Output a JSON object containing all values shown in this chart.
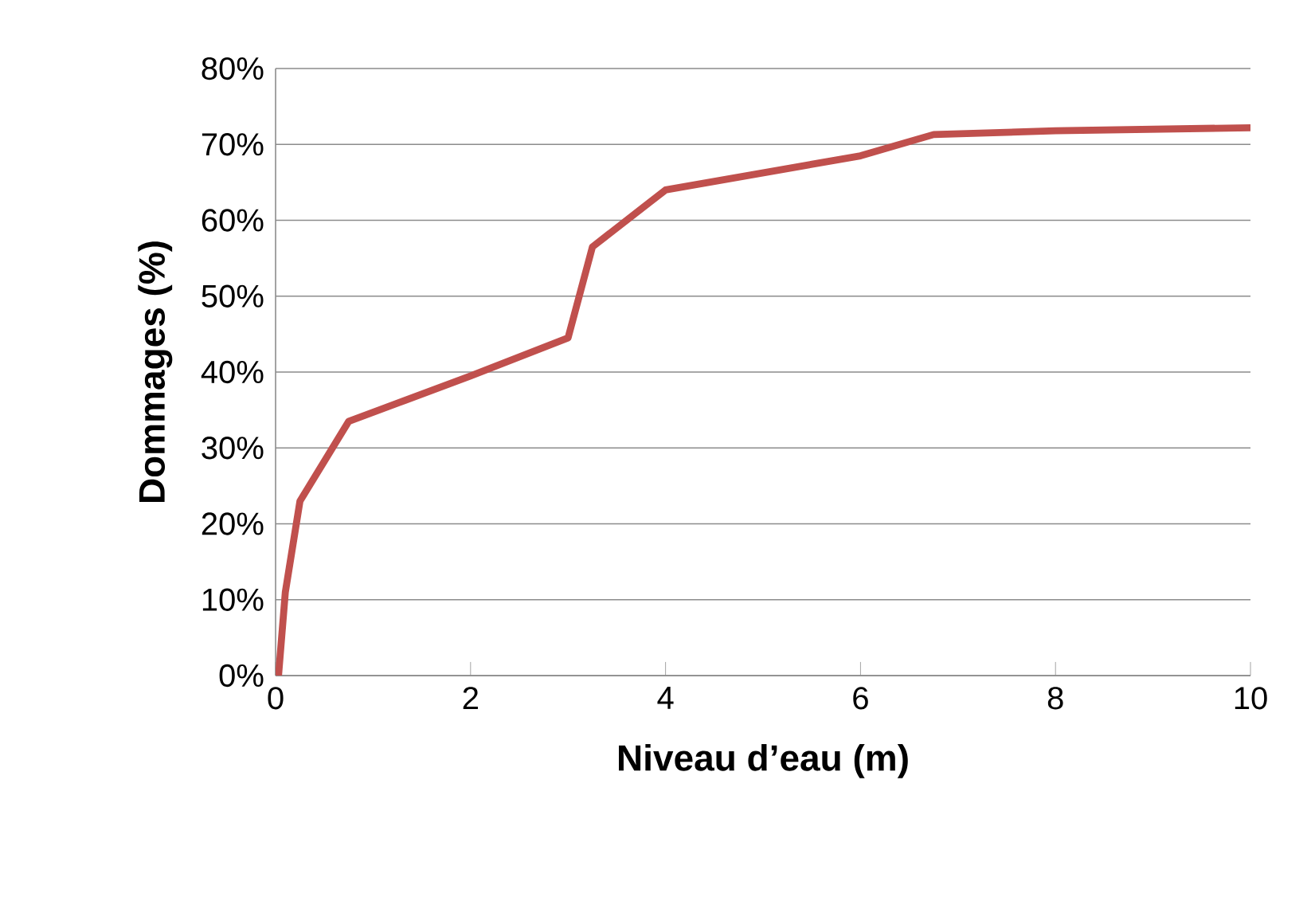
{
  "chart_data": {
    "type": "line",
    "xlabel": "Niveau d’eau (m)",
    "ylabel": "Dommages (%)",
    "x": [
      0.03,
      0.1,
      0.25,
      0.75,
      2,
      3,
      3.25,
      4,
      6,
      6.75,
      8,
      10
    ],
    "series": [
      {
        "color": "#c0504d",
        "values": [
          0,
          11,
          23,
          33.5,
          39.5,
          44.5,
          56.5,
          64,
          68.5,
          71.3,
          71.8,
          72.2
        ]
      }
    ],
    "xlim": [
      0,
      10
    ],
    "xticks": [
      0,
      2,
      4,
      6,
      8,
      10
    ],
    "ylim": [
      0,
      80
    ],
    "yticks": [
      {
        "value": 0,
        "label": "0%"
      },
      {
        "value": 10,
        "label": "10%"
      },
      {
        "value": 20,
        "label": "20%"
      },
      {
        "value": 30,
        "label": "30%"
      },
      {
        "value": 40,
        "label": "40%"
      },
      {
        "value": 50,
        "label": "50%"
      },
      {
        "value": 60,
        "label": "60%"
      },
      {
        "value": 70,
        "label": "70%"
      },
      {
        "value": 80,
        "label": "80%"
      }
    ],
    "grid": "y",
    "marker": "none",
    "line_style": "solid"
  }
}
